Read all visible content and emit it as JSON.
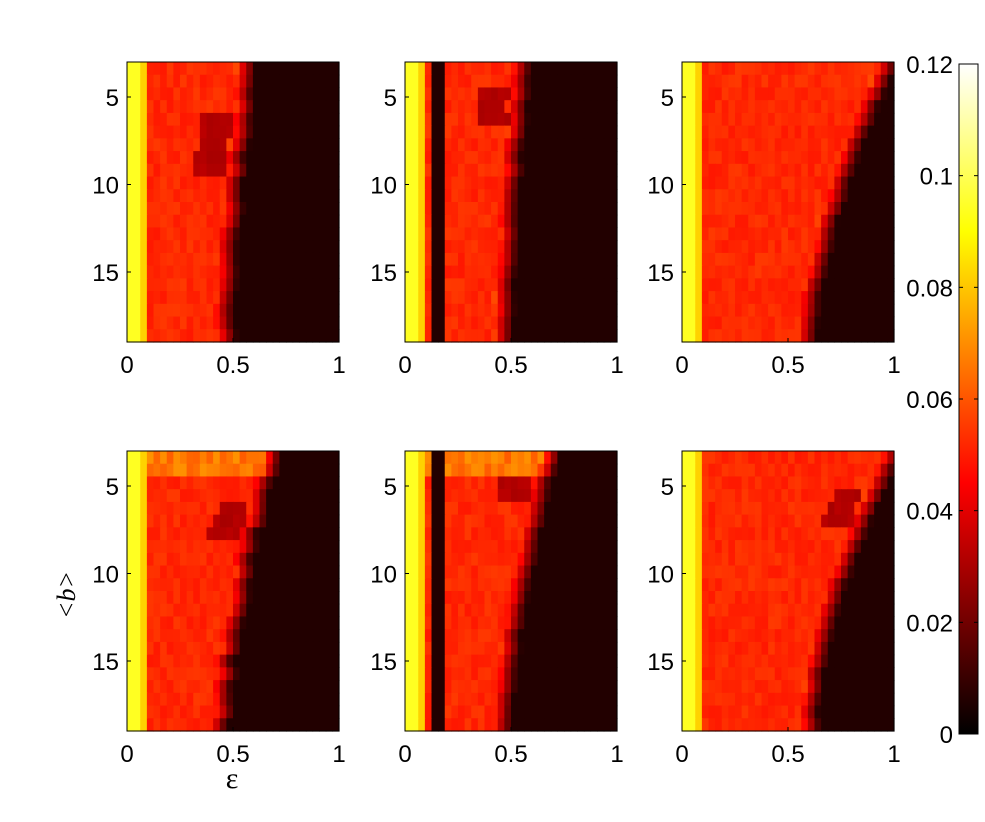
{
  "chart_data": {
    "type": "heatmap",
    "layout": {
      "rows": 2,
      "cols": 3
    },
    "xlabel": "ε",
    "ylabel": "<b>",
    "x_range": [
      0,
      1
    ],
    "y_range": [
      3,
      19
    ],
    "y_reversed": true,
    "x_ticks": [
      0,
      0.5,
      1
    ],
    "x_tick_labels": [
      "0",
      "0.5",
      "1"
    ],
    "y_ticks": [
      5,
      10,
      15
    ],
    "y_tick_labels": [
      "5",
      "10",
      "15"
    ],
    "colormap": "hot",
    "colorbar": {
      "min": 0,
      "max": 0.12,
      "ticks": [
        0,
        0.02,
        0.04,
        0.06,
        0.08,
        0.1,
        0.12
      ],
      "tick_labels": [
        "0",
        "0.02",
        "0.04",
        "0.06",
        "0.08",
        "0.1",
        "0.12"
      ]
    },
    "panels": [
      {
        "id": "a",
        "row": 0,
        "col": 0,
        "yellow_band_eps": [
          0,
          0.09
        ],
        "dark_gap_eps": null,
        "boundary": [
          0.42,
          0.52
        ],
        "boundary_shift": 0.03,
        "bright_top_rows": [],
        "dark_top_rows": [],
        "dark_boundary_rows": [
          4,
          5,
          6,
          7,
          8
        ]
      },
      {
        "id": "b",
        "row": 0,
        "col": 1,
        "yellow_band_eps": [
          0,
          0.09
        ],
        "dark_gap_eps": [
          0.12,
          0.19
        ],
        "boundary": [
          0.42,
          0.5
        ],
        "boundary_shift": 0.02,
        "bright_top_rows": [],
        "dark_top_rows": [
          0,
          1
        ],
        "dark_boundary_rows": [
          2,
          3,
          4
        ]
      },
      {
        "id": "c",
        "row": 0,
        "col": 2,
        "yellow_band_eps": [
          0,
          0.09
        ],
        "dark_gap_eps": null,
        "boundary": [
          0.55,
          0.92
        ],
        "boundary_shift": 0.02,
        "bright_top_rows": [],
        "dark_top_rows": [],
        "dark_boundary_rows": []
      },
      {
        "id": "d",
        "row": 1,
        "col": 0,
        "yellow_band_eps": [
          0,
          0.09
        ],
        "dark_gap_eps": null,
        "boundary": [
          0.4,
          0.63
        ],
        "boundary_shift": 0.04,
        "bright_top_rows": [
          0,
          1
        ],
        "dark_top_rows": [],
        "dark_boundary_rows": [
          4,
          5,
          6
        ]
      },
      {
        "id": "e",
        "row": 1,
        "col": 1,
        "yellow_band_eps": [
          0,
          0.09
        ],
        "dark_gap_eps": [
          0.12,
          0.19
        ],
        "boundary": [
          0.42,
          0.63
        ],
        "boundary_shift": 0.02,
        "bright_top_rows": [
          0,
          1
        ],
        "dark_top_rows": [],
        "dark_boundary_rows": [
          2,
          3
        ]
      },
      {
        "id": "f",
        "row": 1,
        "col": 2,
        "yellow_band_eps": [
          0,
          0.09
        ],
        "dark_gap_eps": null,
        "boundary": [
          0.55,
          0.93
        ],
        "boundary_shift": 0.02,
        "bright_top_rows": [],
        "dark_top_rows": [],
        "dark_boundary_rows": [
          3,
          4,
          5
        ]
      }
    ]
  }
}
